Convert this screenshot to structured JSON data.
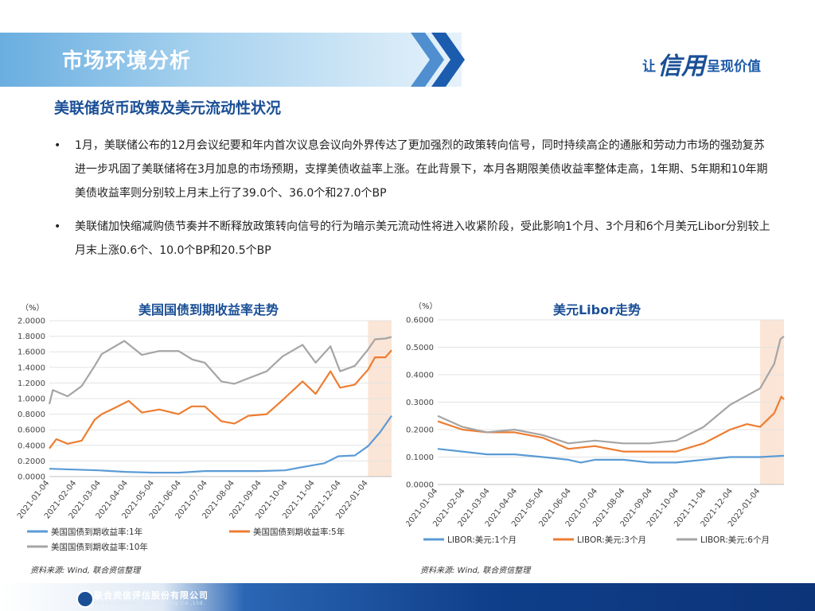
{
  "header": {
    "title": "市场环境分析",
    "slogan_pre": "让",
    "slogan_big": "信用",
    "slogan_post": "呈现价值"
  },
  "section_title": "美联储货币政策及美元流动性状况",
  "bullets": [
    "1月，美联储公布的12月会议纪要和年内首次议息会议向外界传达了更加强烈的政策转向信号，同时持续高企的通胀和劳动力市场的强劲复苏进一步巩固了美联储将在3月加息的市场预期，支撑美债收益率上涨。在此背景下，本月各期限美债收益率整体走高，1年期、5年期和10年期美债收益率则分别较上月末上行了39.0个、36.0个和27.0个BP",
    "美联储加快缩减购债节奏并不断释放政策转向信号的行为暗示美元流动性将进入收紧阶段，受此影响1个月、3个月和6个月美元Libor分别较上月末上涨0.6个、10.0个BP和20.5个BP"
  ],
  "source_left": "资料来源:  Wind, 联合资信整理",
  "source_right": "资料来源:  Wind, 联合资信整理",
  "footer": {
    "company": "联合资信评估股份有限公司",
    "company_en": "China Lianhe Credit Rating Co.,Ltd."
  },
  "colors": {
    "blue": "#5b9bd5",
    "orange": "#ed7d31",
    "gray": "#a5a5a5",
    "shade": "#fbe5d6"
  },
  "chart_data": [
    {
      "type": "line",
      "title": "美国国债到期收益率走势",
      "ylabel": "（%）",
      "ylim": [
        0,
        2.0
      ],
      "yticks": [
        "0.0000",
        "0.2000",
        "0.4000",
        "0.6000",
        "0.8000",
        "1.0000",
        "1.2000",
        "1.4000",
        "1.6000",
        "1.8000",
        "2.0000"
      ],
      "x_start": "2021-01-04",
      "x_end": "2022-01-31",
      "xticks": [
        "2021-01-04",
        "2021-02-04",
        "2021-03-04",
        "2021-04-04",
        "2021-05-04",
        "2021-06-04",
        "2021-07-04",
        "2021-08-04",
        "2021-09-04",
        "2021-10-04",
        "2021-11-04",
        "2021-12-04",
        "2022-01-04"
      ],
      "shade_from": "2022-01-04",
      "series": [
        {
          "name": "美国国债到期收益率:1年",
          "color": "#5b9bd5",
          "points": [
            [
              "2021-01-04",
              0.1
            ],
            [
              "2021-02-01",
              0.09
            ],
            [
              "2021-03-01",
              0.08
            ],
            [
              "2021-04-01",
              0.06
            ],
            [
              "2021-05-03",
              0.05
            ],
            [
              "2021-06-01",
              0.05
            ],
            [
              "2021-07-01",
              0.07
            ],
            [
              "2021-08-02",
              0.07
            ],
            [
              "2021-09-01",
              0.07
            ],
            [
              "2021-10-01",
              0.08
            ],
            [
              "2021-10-25",
              0.13
            ],
            [
              "2021-11-15",
              0.17
            ],
            [
              "2021-12-01",
              0.26
            ],
            [
              "2021-12-20",
              0.27
            ],
            [
              "2022-01-04",
              0.39
            ],
            [
              "2022-01-18",
              0.57
            ],
            [
              "2022-01-31",
              0.78
            ]
          ]
        },
        {
          "name": "美国国债到期收益率:5年",
          "color": "#ed7d31",
          "points": [
            [
              "2021-01-04",
              0.36
            ],
            [
              "2021-01-12",
              0.48
            ],
            [
              "2021-01-25",
              0.42
            ],
            [
              "2021-02-10",
              0.46
            ],
            [
              "2021-02-25",
              0.73
            ],
            [
              "2021-03-05",
              0.8
            ],
            [
              "2021-03-18",
              0.87
            ],
            [
              "2021-04-05",
              0.97
            ],
            [
              "2021-04-20",
              0.82
            ],
            [
              "2021-05-10",
              0.86
            ],
            [
              "2021-06-01",
              0.8
            ],
            [
              "2021-06-16",
              0.9
            ],
            [
              "2021-07-01",
              0.9
            ],
            [
              "2021-07-20",
              0.71
            ],
            [
              "2021-08-04",
              0.68
            ],
            [
              "2021-08-20",
              0.78
            ],
            [
              "2021-09-10",
              0.8
            ],
            [
              "2021-09-28",
              0.98
            ],
            [
              "2021-10-21",
              1.22
            ],
            [
              "2021-11-05",
              1.06
            ],
            [
              "2021-11-22",
              1.35
            ],
            [
              "2021-12-03",
              1.14
            ],
            [
              "2021-12-20",
              1.18
            ],
            [
              "2022-01-04",
              1.37
            ],
            [
              "2022-01-12",
              1.53
            ],
            [
              "2022-01-24",
              1.53
            ],
            [
              "2022-01-31",
              1.62
            ]
          ]
        },
        {
          "name": "美国国债到期收益率:10年",
          "color": "#a5a5a5",
          "points": [
            [
              "2021-01-04",
              0.93
            ],
            [
              "2021-01-08",
              1.11
            ],
            [
              "2021-01-25",
              1.03
            ],
            [
              "2021-02-10",
              1.16
            ],
            [
              "2021-02-25",
              1.42
            ],
            [
              "2021-03-05",
              1.57
            ],
            [
              "2021-03-31",
              1.74
            ],
            [
              "2021-04-20",
              1.56
            ],
            [
              "2021-05-10",
              1.61
            ],
            [
              "2021-06-01",
              1.61
            ],
            [
              "2021-06-17",
              1.5
            ],
            [
              "2021-07-01",
              1.46
            ],
            [
              "2021-07-20",
              1.22
            ],
            [
              "2021-08-04",
              1.19
            ],
            [
              "2021-08-20",
              1.26
            ],
            [
              "2021-09-10",
              1.35
            ],
            [
              "2021-09-28",
              1.54
            ],
            [
              "2021-10-21",
              1.69
            ],
            [
              "2021-11-05",
              1.46
            ],
            [
              "2021-11-22",
              1.67
            ],
            [
              "2021-12-03",
              1.35
            ],
            [
              "2021-12-20",
              1.42
            ],
            [
              "2022-01-04",
              1.63
            ],
            [
              "2022-01-12",
              1.76
            ],
            [
              "2022-01-24",
              1.77
            ],
            [
              "2022-01-31",
              1.79
            ]
          ]
        }
      ]
    },
    {
      "type": "line",
      "title": "美元Libor走势",
      "ylabel": "（%）",
      "ylim": [
        0,
        0.6
      ],
      "yticks": [
        "0.0000",
        "0.1000",
        "0.2000",
        "0.3000",
        "0.4000",
        "0.5000",
        "0.6000"
      ],
      "x_start": "2021-01-04",
      "x_end": "2022-01-31",
      "xticks": [
        "2021-01-04",
        "2021-02-04",
        "2021-03-04",
        "2021-04-04",
        "2021-05-04",
        "2021-06-04",
        "2021-07-04",
        "2021-08-04",
        "2021-09-04",
        "2021-10-04",
        "2021-11-04",
        "2021-12-04",
        "2022-01-04"
      ],
      "shade_from": "2022-01-04",
      "series": [
        {
          "name": "LIBOR:美元:1个月",
          "color": "#5b9bd5",
          "points": [
            [
              "2021-01-04",
              0.13
            ],
            [
              "2021-02-01",
              0.12
            ],
            [
              "2021-03-01",
              0.11
            ],
            [
              "2021-04-01",
              0.11
            ],
            [
              "2021-05-03",
              0.1
            ],
            [
              "2021-06-01",
              0.09
            ],
            [
              "2021-06-15",
              0.08
            ],
            [
              "2021-07-01",
              0.09
            ],
            [
              "2021-08-02",
              0.09
            ],
            [
              "2021-09-01",
              0.08
            ],
            [
              "2021-10-01",
              0.08
            ],
            [
              "2021-11-01",
              0.09
            ],
            [
              "2021-12-01",
              0.1
            ],
            [
              "2022-01-04",
              0.1
            ],
            [
              "2022-01-31",
              0.105
            ]
          ]
        },
        {
          "name": "LIBOR:美元:3个月",
          "color": "#ed7d31",
          "points": [
            [
              "2021-01-04",
              0.23
            ],
            [
              "2021-02-01",
              0.2
            ],
            [
              "2021-03-01",
              0.19
            ],
            [
              "2021-04-01",
              0.19
            ],
            [
              "2021-05-03",
              0.17
            ],
            [
              "2021-06-01",
              0.13
            ],
            [
              "2021-07-01",
              0.14
            ],
            [
              "2021-08-02",
              0.12
            ],
            [
              "2021-09-01",
              0.12
            ],
            [
              "2021-10-01",
              0.12
            ],
            [
              "2021-11-01",
              0.15
            ],
            [
              "2021-12-01",
              0.2
            ],
            [
              "2021-12-20",
              0.22
            ],
            [
              "2022-01-04",
              0.21
            ],
            [
              "2022-01-20",
              0.26
            ],
            [
              "2022-01-28",
              0.32
            ],
            [
              "2022-01-31",
              0.31
            ]
          ]
        },
        {
          "name": "LIBOR:美元:6个月",
          "color": "#a5a5a5",
          "points": [
            [
              "2021-01-04",
              0.25
            ],
            [
              "2021-02-01",
              0.21
            ],
            [
              "2021-03-01",
              0.19
            ],
            [
              "2021-04-01",
              0.2
            ],
            [
              "2021-05-03",
              0.18
            ],
            [
              "2021-06-01",
              0.15
            ],
            [
              "2021-07-01",
              0.16
            ],
            [
              "2021-08-02",
              0.15
            ],
            [
              "2021-09-01",
              0.15
            ],
            [
              "2021-10-01",
              0.16
            ],
            [
              "2021-11-01",
              0.21
            ],
            [
              "2021-12-01",
              0.29
            ],
            [
              "2022-01-04",
              0.35
            ],
            [
              "2022-01-20",
              0.44
            ],
            [
              "2022-01-27",
              0.53
            ],
            [
              "2022-01-31",
              0.54
            ]
          ]
        }
      ]
    }
  ]
}
